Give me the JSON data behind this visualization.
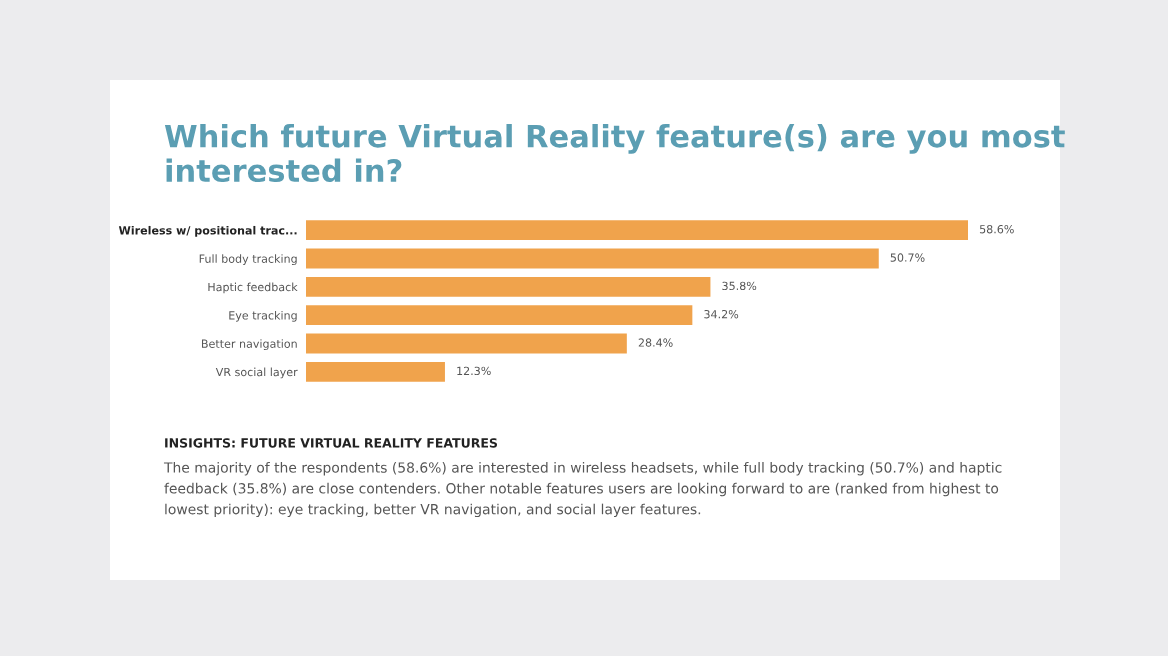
{
  "chart_data": {
    "type": "bar",
    "orientation": "horizontal",
    "title": "Which future Virtual Reality feature(s) are you most interested in?",
    "categories": [
      "Wireless w/ positional trac...",
      "Full body tracking",
      "Haptic feedback",
      "Eye tracking",
      "Better navigation",
      "VR social layer"
    ],
    "values": [
      58.6,
      50.7,
      35.8,
      34.2,
      28.4,
      12.3
    ],
    "value_labels": [
      "58.6%",
      "50.7%",
      "35.8%",
      "34.2%",
      "28.4%",
      "12.3%"
    ],
    "color": "#f0a34c",
    "xlim": [
      0,
      58.6
    ],
    "tick_labels": "y",
    "grid": false,
    "annotations": [
      "INSIGHTS: FUTURE VIRTUAL REALITY FEATURES",
      "The majority of the respondents (58.6%) are interested in wireless headsets, while full body tracking (50.7%) and haptic feedback (35.8%) are close contenders. Other notable features users are looking forward to are (ranked from highest to lowest priority): eye tracking, better VR navigation, and social layer features."
    ]
  }
}
